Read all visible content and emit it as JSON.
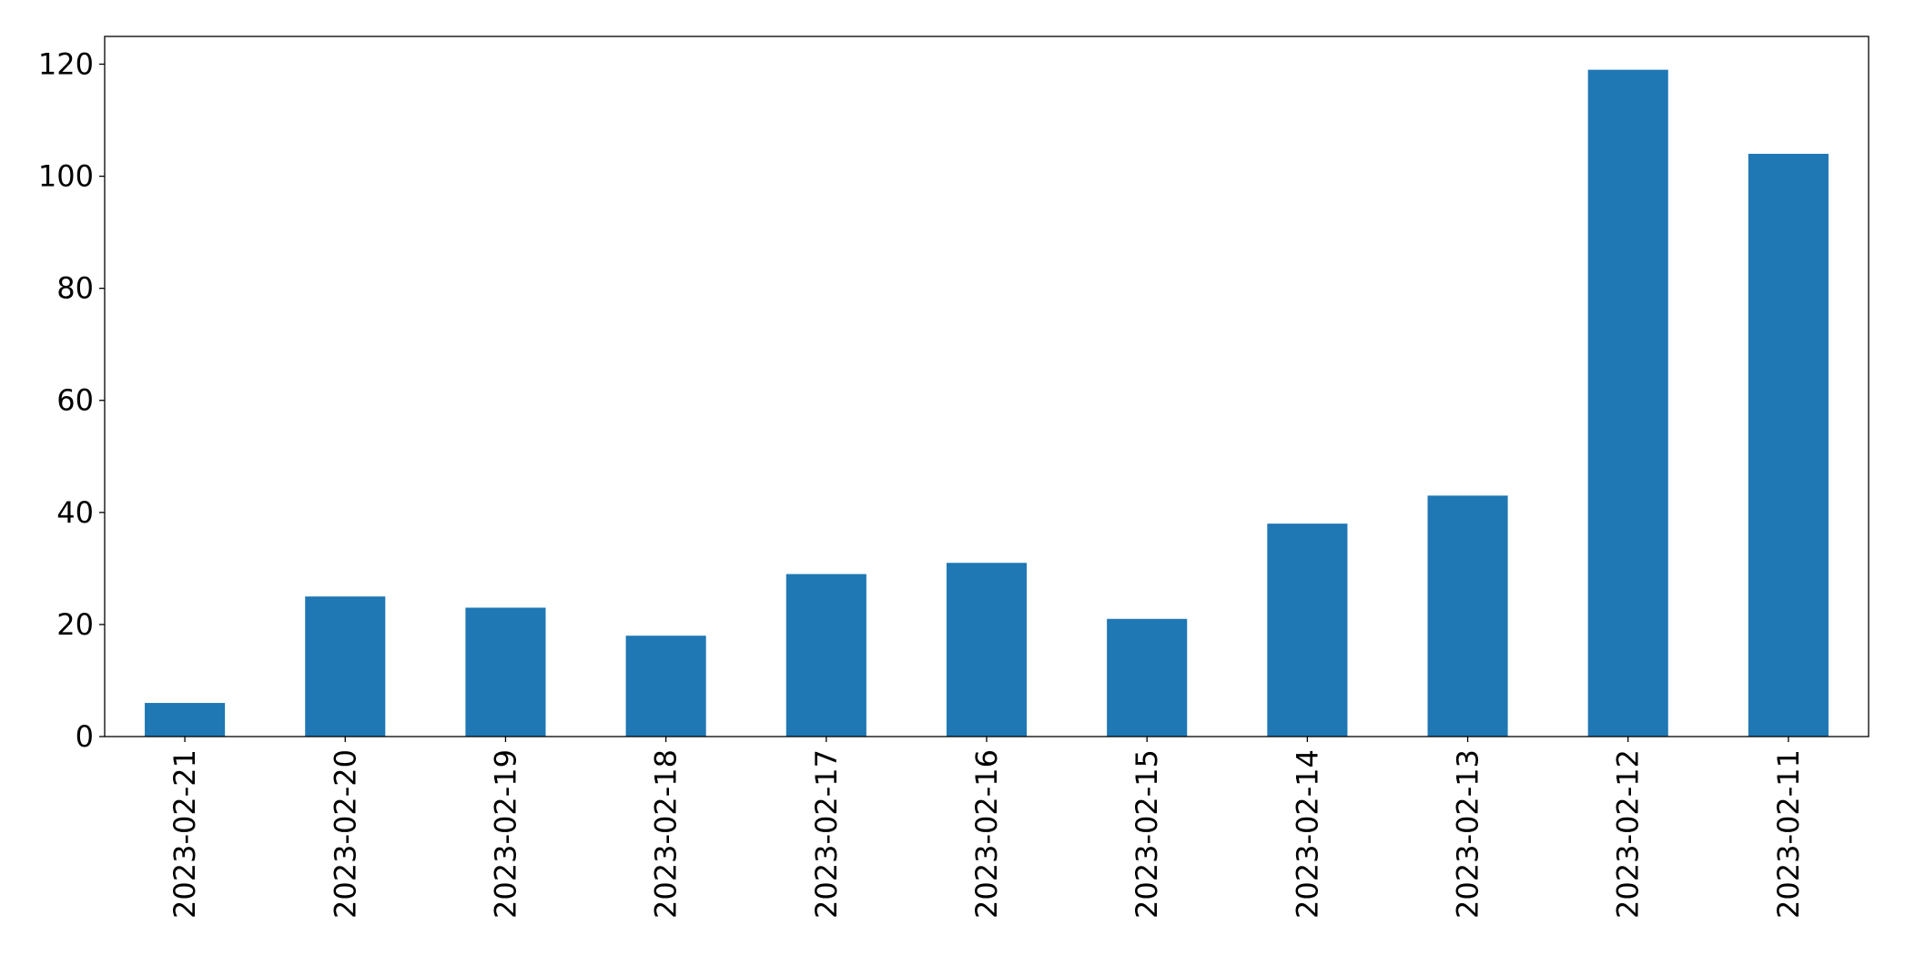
{
  "chart_data": {
    "type": "bar",
    "categories": [
      "2023-02-21",
      "2023-02-20",
      "2023-02-19",
      "2023-02-18",
      "2023-02-17",
      "2023-02-16",
      "2023-02-15",
      "2023-02-14",
      "2023-02-13",
      "2023-02-12",
      "2023-02-11"
    ],
    "values": [
      6,
      25,
      23,
      18,
      29,
      31,
      21,
      38,
      43,
      119,
      104
    ],
    "color": "#1f77b4",
    "ylim": [
      0,
      124.95
    ],
    "yticks": [
      0,
      20,
      40,
      60,
      80,
      100,
      120
    ],
    "grid": false
  }
}
